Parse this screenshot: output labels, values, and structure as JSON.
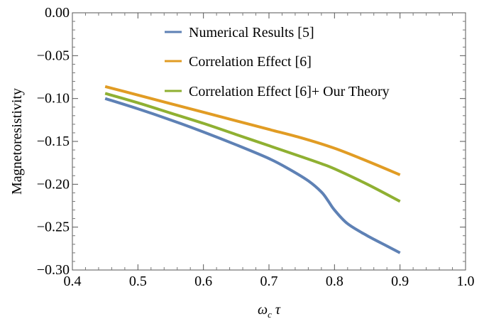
{
  "chart_data": {
    "type": "line",
    "title": "",
    "xlabel_main": "ω",
    "xlabel_sub": "c",
    "xlabel_tail": " τ",
    "ylabel": "Magnetoresistivity",
    "xlim": [
      0.4,
      1.0
    ],
    "ylim": [
      -0.3,
      0.0
    ],
    "grid": false,
    "legend_position": "top-right",
    "x_ticks": [
      "0.4",
      "0.5",
      "0.6",
      "0.7",
      "0.8",
      "0.9",
      "1.0"
    ],
    "y_ticks": [
      "0.00",
      "−0.05",
      "−0.10",
      "−0.15",
      "−0.20",
      "−0.25",
      "−0.30"
    ],
    "series": [
      {
        "name": "Numerical Results [5]",
        "color": "#5e81b5",
        "x": [
          0.45,
          0.5,
          0.55,
          0.6,
          0.65,
          0.7,
          0.73,
          0.76,
          0.78,
          0.79,
          0.8,
          0.82,
          0.85,
          0.88,
          0.9
        ],
        "y": [
          -0.1,
          -0.112,
          -0.125,
          -0.139,
          -0.154,
          -0.17,
          -0.182,
          -0.196,
          -0.209,
          -0.219,
          -0.23,
          -0.246,
          -0.26,
          -0.272,
          -0.28
        ]
      },
      {
        "name": "Correlation Effect [6]",
        "color": "#e19c24",
        "x": [
          0.45,
          0.5,
          0.55,
          0.6,
          0.65,
          0.7,
          0.75,
          0.8,
          0.85,
          0.9
        ],
        "y": [
          -0.086,
          -0.096,
          -0.106,
          -0.116,
          -0.126,
          -0.136,
          -0.146,
          -0.158,
          -0.173,
          -0.189
        ]
      },
      {
        "name": "Correlation Effect [6]+ Our Theory",
        "color": "#8fb032",
        "x": [
          0.45,
          0.5,
          0.55,
          0.6,
          0.65,
          0.7,
          0.75,
          0.78,
          0.8,
          0.85,
          0.9
        ],
        "y": [
          -0.094,
          -0.105,
          -0.117,
          -0.129,
          -0.142,
          -0.155,
          -0.168,
          -0.176,
          -0.182,
          -0.2,
          -0.22
        ]
      }
    ]
  }
}
